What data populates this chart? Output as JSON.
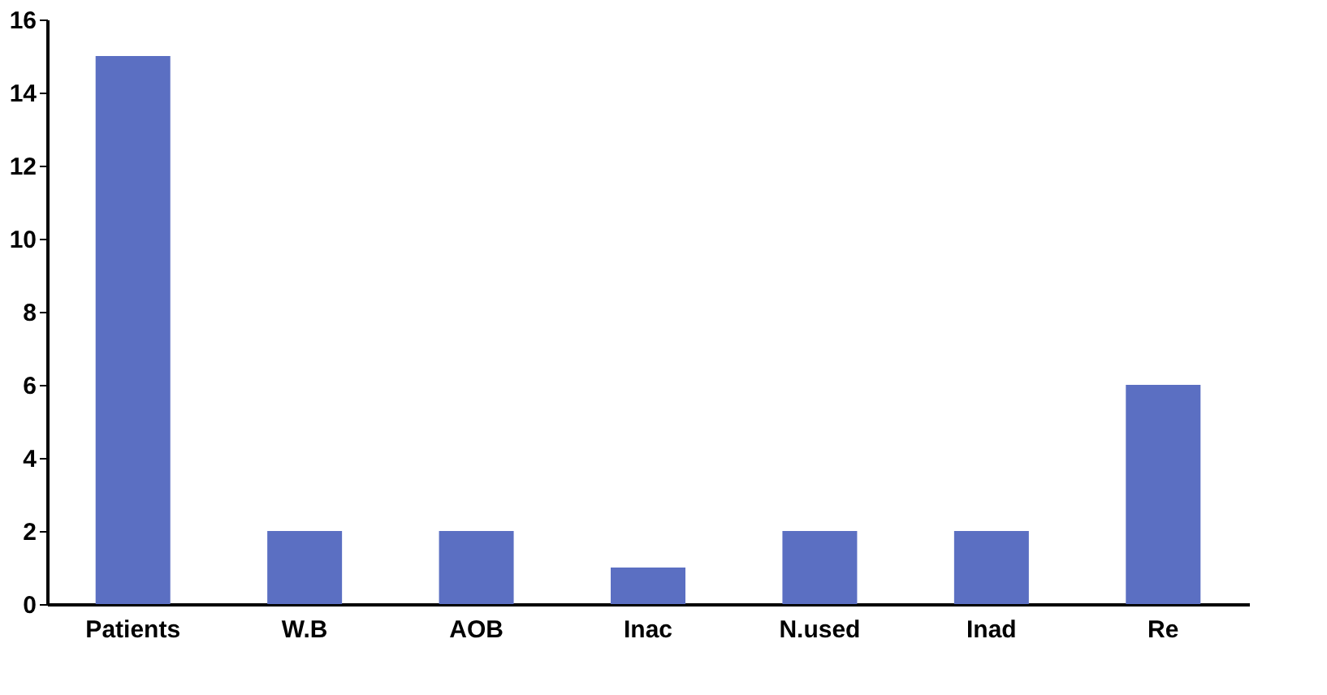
{
  "chart_data": {
    "type": "bar",
    "categories": [
      "Patients",
      "W.B",
      "AOB",
      "Inac",
      "N.used",
      "Inad",
      "Re"
    ],
    "values": [
      15,
      2,
      2,
      1,
      2,
      2,
      6
    ],
    "color": "#5b6fc2",
    "ylim": [
      0,
      16
    ],
    "yticks": [
      0,
      2,
      4,
      6,
      8,
      10,
      12,
      14,
      16
    ],
    "grid": false
  }
}
